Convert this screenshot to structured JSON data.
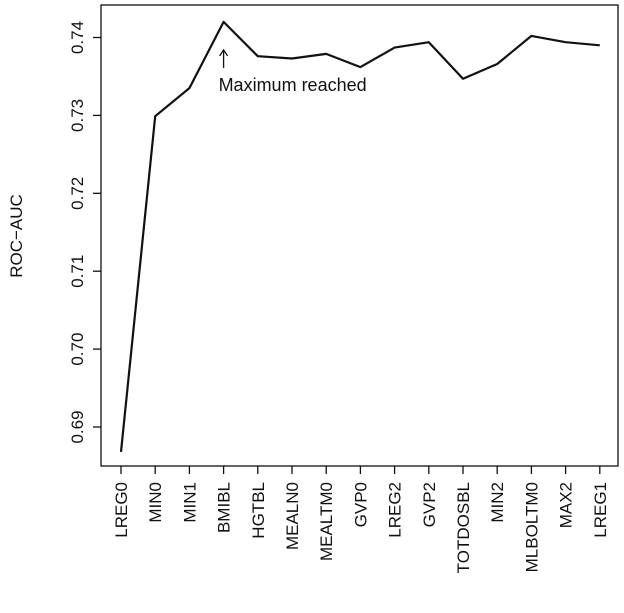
{
  "chart_data": {
    "type": "line",
    "ylabel": "ROC−AUC",
    "xlabel": "",
    "categories": [
      "LREG0",
      "MIN0",
      "MIN1",
      "BMIBL",
      "HGTBL",
      "MEALN0",
      "MEALTM0",
      "GVP0",
      "LREG2",
      "GVP2",
      "TOTDOSBL",
      "MIN2",
      "MLBOLTM0",
      "MAX2",
      "LREG1"
    ],
    "series": [
      {
        "values": [
          0.6868,
          0.7299,
          0.7335,
          0.742,
          0.7376,
          0.7373,
          0.7379,
          0.7362,
          0.7387,
          0.7394,
          0.7347,
          0.7366,
          0.7402,
          0.7394,
          0.739
        ]
      }
    ],
    "yticks": [
      0.69,
      0.7,
      0.71,
      0.72,
      0.73,
      0.74
    ],
    "ytick_labels": [
      "0.69",
      "0.70",
      "0.71",
      "0.72",
      "0.73",
      "0.74"
    ],
    "ylim": [
      0.6855,
      0.7425
    ],
    "grid": false,
    "line_color": "#111111",
    "annotation": {
      "text": "Maximum reached",
      "category": "BMIBL"
    }
  }
}
